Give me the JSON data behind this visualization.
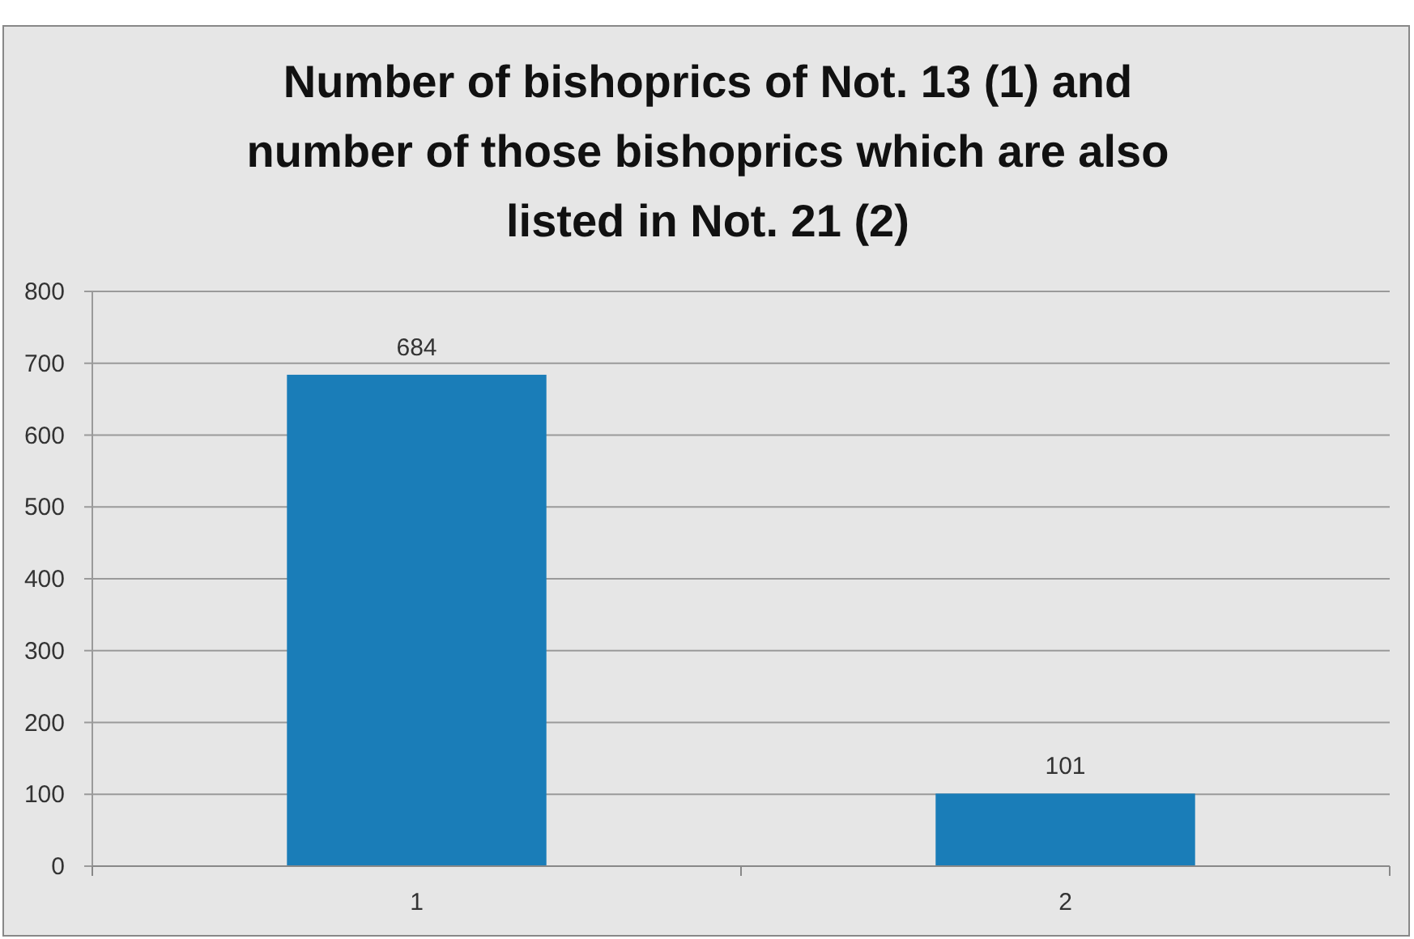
{
  "chart_data": {
    "type": "bar",
    "title": "Number of bishoprics of Not. 13 (1) and\nnumber of those bishoprics which are also\nlisted in Not. 21 (2)",
    "categories": [
      "1",
      "2"
    ],
    "values": [
      684,
      101
    ],
    "color": "#1a7db8",
    "ylim": [
      0,
      800
    ],
    "yticks": [
      0,
      100,
      200,
      300,
      400,
      500,
      600,
      700,
      800
    ],
    "grid": "y",
    "data_labels": true
  }
}
